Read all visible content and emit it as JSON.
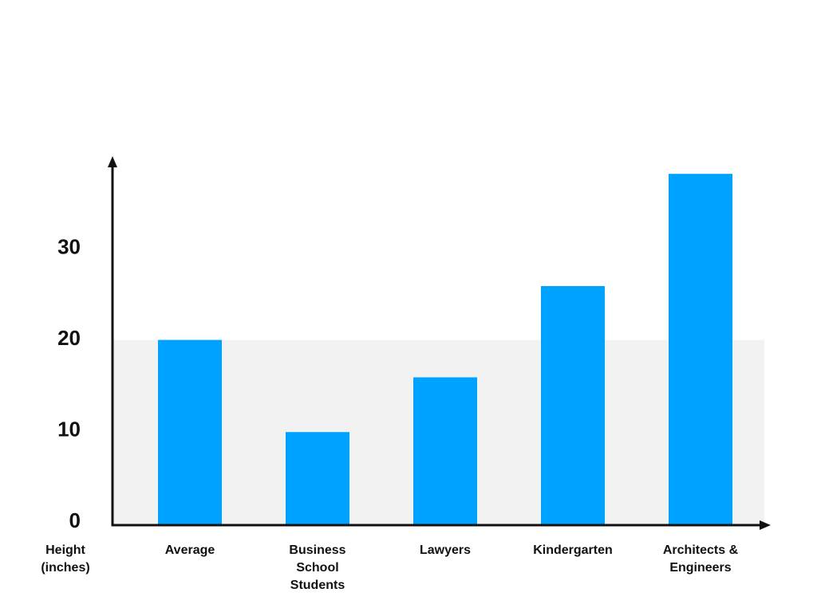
{
  "chart_data": {
    "type": "bar",
    "ylabel": [
      "Height",
      "(inches)"
    ],
    "categories": [
      [
        "Average"
      ],
      [
        "Business",
        "School",
        "Students"
      ],
      [
        "Lawyers"
      ],
      [
        "Kindergarten"
      ],
      [
        "Architects &",
        "Engineers"
      ]
    ],
    "values": [
      20.3,
      10.2,
      16.2,
      26.2,
      38.5
    ],
    "yticks": [
      0,
      10,
      20,
      30
    ],
    "ylim": [
      0,
      40
    ],
    "reference_band": {
      "from": 0,
      "to": 20.3
    },
    "bar_color": "#00a2ff",
    "band_color": "#f2f2f2",
    "axis_color": "#111111",
    "grid": false,
    "legend": "none"
  }
}
